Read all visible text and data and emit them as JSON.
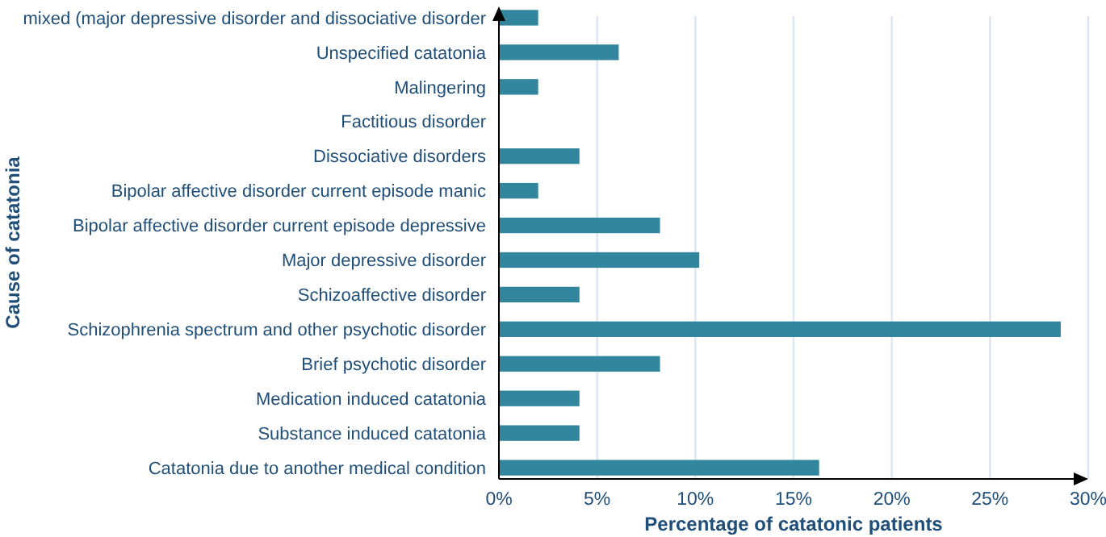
{
  "chart_data": {
    "type": "bar",
    "orientation": "horizontal",
    "categories": [
      "mixed (major depressive disorder and dissociative disorder",
      "Unspecified catatonia",
      "Malingering",
      "Factitious disorder",
      "Dissociative disorders",
      "Bipolar affective disorder current episode  manic",
      "Bipolar affective disorder current episode depressive",
      "Major depressive disorder",
      "Schizoaffective disorder",
      "Schizophrenia spectrum and other psychotic disorder",
      "Brief psychotic disorder",
      "Medication induced catatonia",
      "Substance induced catatonia",
      "Catatonia due to another medical condition"
    ],
    "values": [
      2,
      6.1,
      2,
      0,
      4.1,
      2,
      8.2,
      10.2,
      4.1,
      28.6,
      8.2,
      4.1,
      4.1,
      16.3
    ],
    "color": "#31859c",
    "xlim": [
      0,
      30
    ],
    "xticks": [
      {
        "value": 0,
        "label": "0%"
      },
      {
        "value": 5,
        "label": "5%"
      },
      {
        "value": 10,
        "label": "10%"
      },
      {
        "value": 15,
        "label": "15%"
      },
      {
        "value": 20,
        "label": "20%"
      },
      {
        "value": 25,
        "label": "25%"
      },
      {
        "value": 30,
        "label": "30%"
      }
    ],
    "grid": "x",
    "xlabel": "Percentage of catatonic patients",
    "ylabel": "Cause of catatonia"
  }
}
